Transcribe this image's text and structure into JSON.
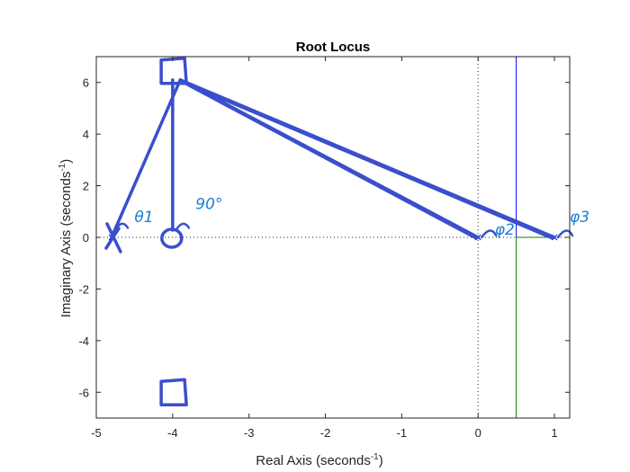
{
  "chart_data": {
    "type": "scatter",
    "title": "Root Locus",
    "xlabel": "Real Axis (seconds",
    "ylabel": "Imaginary Axis (seconds",
    "unit_exponent": "-1",
    "xlim": [
      -5,
      1.2
    ],
    "ylim": [
      -7,
      7
    ],
    "xticks": [
      -5,
      -4,
      -3,
      -2,
      -1,
      0,
      1
    ],
    "yticks": [
      -6,
      -4,
      -2,
      0,
      2,
      4,
      6
    ],
    "poles": [
      {
        "x": 0,
        "y": 0
      },
      {
        "x": 1,
        "y": 0
      },
      {
        "x": -4.8,
        "y": 0
      }
    ],
    "zeros": [
      {
        "x": -4,
        "y": 0
      }
    ],
    "locus_branches": [
      {
        "color": "#0000ff",
        "points": [
          [
            0.5,
            0
          ],
          [
            0.5,
            7
          ]
        ]
      },
      {
        "color": "#008000",
        "points": [
          [
            0.5,
            0
          ],
          [
            0.5,
            -7
          ]
        ]
      },
      {
        "color": "#008000",
        "points": [
          [
            0.5,
            0
          ],
          [
            1,
            0
          ]
        ]
      }
    ],
    "annotations": {
      "pen_color": "#3b4fcc",
      "label_color": "#1a7fd6",
      "test_point": {
        "x": -3.9,
        "y": 6.1
      },
      "labels": [
        {
          "text": "θ1",
          "x": -4.5,
          "y": 0.6
        },
        {
          "text": "90°",
          "x": -3.7,
          "y": 1.1
        },
        {
          "text": "φ2",
          "x": 0.22,
          "y": 0.1
        },
        {
          "text": "φ3",
          "x": 1.2,
          "y": 0.6
        }
      ],
      "boxes": [
        {
          "x": -4.15,
          "y": 6.45
        },
        {
          "x": -4.15,
          "y": -6.0
        }
      ]
    }
  }
}
